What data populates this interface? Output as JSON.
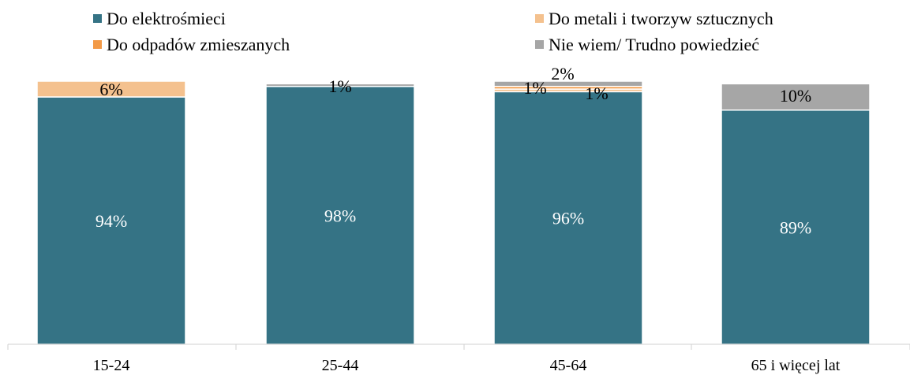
{
  "chart_data": {
    "type": "bar",
    "stacked": true,
    "percent": true,
    "categories": [
      "15-24",
      "25-44",
      "45-64",
      "65 i więcej lat"
    ],
    "series": [
      {
        "name": "Do elektrośmieci",
        "color": "#357385",
        "values": [
          94,
          98,
          96,
          89
        ]
      },
      {
        "name": "Do metali i tworzyw sztucznych",
        "color": "#F4C18E",
        "values": [
          6,
          0,
          1,
          0
        ]
      },
      {
        "name": "Do odpadów zmieszanych",
        "color": "#F39A47",
        "values": [
          0,
          0,
          1,
          0
        ]
      },
      {
        "name": "Nie wiem/ Trudno powiedzieć",
        "color": "#A6A6A6",
        "values": [
          0,
          1,
          2,
          10
        ]
      }
    ],
    "data_labels": [
      [
        "94%",
        "6%",
        "",
        ""
      ],
      [
        "98%",
        "",
        "",
        "1%"
      ],
      [
        "96%",
        "1%",
        "1%",
        "2%"
      ],
      [
        "89%",
        "",
        "",
        "10%"
      ]
    ],
    "ylim": [
      0,
      100
    ],
    "grid": false,
    "legend_position": "top"
  }
}
